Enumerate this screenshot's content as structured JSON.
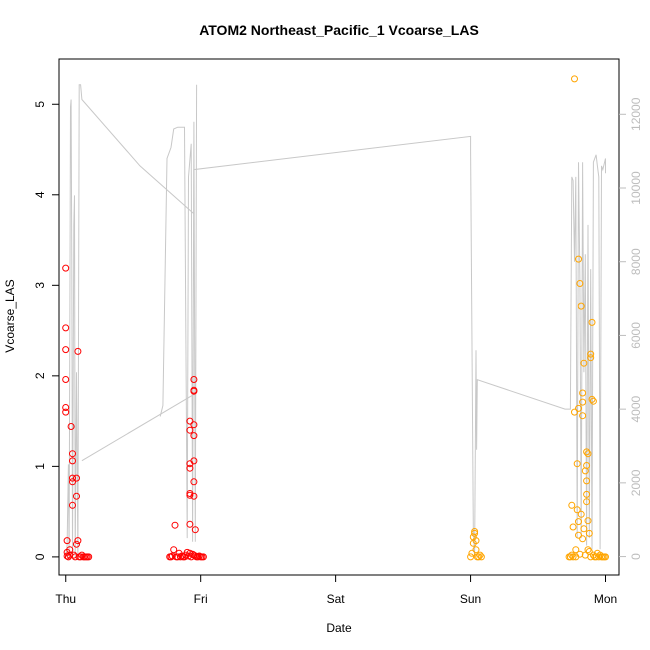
{
  "chart_data": {
    "type": "scatter",
    "title": "ATOM2 Northeast_Pacific_1 Vcoarse_LAS",
    "xlabel": "Date",
    "ylabel": "Vcoarse_LAS",
    "xlim": [
      -0.05,
      4.1
    ],
    "ylim": [
      -0.2,
      5.5
    ],
    "y2lim": [
      -500,
      13500
    ],
    "grid": false,
    "x_ticks": [
      {
        "value": 0,
        "label": "Thu"
      },
      {
        "value": 1,
        "label": "Fri"
      },
      {
        "value": 2,
        "label": "Sat"
      },
      {
        "value": 3,
        "label": "Sun"
      },
      {
        "value": 4,
        "label": "Mon"
      }
    ],
    "y_ticks": [
      {
        "value": 0,
        "label": "0"
      },
      {
        "value": 1,
        "label": "1"
      },
      {
        "value": 2,
        "label": "2"
      },
      {
        "value": 3,
        "label": "3"
      },
      {
        "value": 4,
        "label": "4"
      },
      {
        "value": 5,
        "label": "5"
      }
    ],
    "y2_ticks": [
      {
        "value": 0,
        "label": "0"
      },
      {
        "value": 2000,
        "label": "2000"
      },
      {
        "value": 4000,
        "label": "4000"
      },
      {
        "value": 6000,
        "label": "6000"
      },
      {
        "value": 8000,
        "label": "8000"
      },
      {
        "value": 10000,
        "label": "10000"
      },
      {
        "value": 12000,
        "label": "12000"
      }
    ],
    "colors": {
      "series_red": "#ff0000",
      "series_orange": "#ffa500",
      "altitude_line": "#c8c8c8",
      "axis": "#000000",
      "right_axis": "#bdbdbd"
    },
    "series": [
      {
        "color": "#ff0000",
        "points": [
          [
            0.0,
            3.19
          ],
          [
            0.0,
            2.53
          ],
          [
            0.0,
            2.29
          ],
          [
            0.0,
            1.96
          ],
          [
            0.0,
            1.65
          ],
          [
            0.0,
            1.6
          ],
          [
            0.01,
            0.18
          ],
          [
            0.01,
            0.05
          ],
          [
            0.01,
            0.01
          ],
          [
            0.02,
            0.0
          ],
          [
            0.03,
            0.02
          ],
          [
            0.03,
            0.08
          ],
          [
            0.04,
            1.44
          ],
          [
            0.05,
            1.14
          ],
          [
            0.05,
            1.06
          ],
          [
            0.05,
            0.87
          ],
          [
            0.05,
            0.83
          ],
          [
            0.05,
            0.57
          ],
          [
            0.06,
            0.02
          ],
          [
            0.07,
            0.0
          ],
          [
            0.08,
            0.87
          ],
          [
            0.08,
            0.67
          ],
          [
            0.08,
            0.14
          ],
          [
            0.09,
            2.27
          ],
          [
            0.09,
            0.18
          ],
          [
            0.1,
            0.0
          ],
          [
            0.11,
            0.0
          ],
          [
            0.12,
            0.02
          ],
          [
            0.13,
            0.0
          ],
          [
            0.14,
            0.0
          ],
          [
            0.15,
            0.0
          ],
          [
            0.16,
            0.0
          ],
          [
            0.17,
            0.0
          ],
          [
            0.77,
            0.0
          ],
          [
            0.78,
            0.0
          ],
          [
            0.79,
            0.01
          ],
          [
            0.8,
            0.08
          ],
          [
            0.81,
            0.35
          ],
          [
            0.82,
            0.0
          ],
          [
            0.83,
            0.0
          ],
          [
            0.84,
            0.04
          ],
          [
            0.85,
            0.0
          ],
          [
            0.86,
            0.01
          ],
          [
            0.87,
            0.0
          ],
          [
            0.88,
            0.0
          ],
          [
            0.89,
            0.02
          ],
          [
            0.9,
            0.05
          ],
          [
            0.91,
            0.01
          ],
          [
            0.92,
            1.5
          ],
          [
            0.92,
            1.4
          ],
          [
            0.92,
            1.03
          ],
          [
            0.92,
            0.98
          ],
          [
            0.92,
            0.7
          ],
          [
            0.92,
            0.68
          ],
          [
            0.92,
            0.36
          ],
          [
            0.92,
            0.04
          ],
          [
            0.93,
            0.0
          ],
          [
            0.94,
            0.03
          ],
          [
            0.95,
            1.96
          ],
          [
            0.95,
            1.84
          ],
          [
            0.95,
            1.83
          ],
          [
            0.95,
            1.46
          ],
          [
            0.95,
            1.34
          ],
          [
            0.95,
            1.06
          ],
          [
            0.95,
            0.83
          ],
          [
            0.95,
            0.67
          ],
          [
            0.95,
            0.02
          ],
          [
            0.96,
            0.3
          ],
          [
            0.96,
            0.01
          ],
          [
            0.97,
            0.0
          ],
          [
            0.98,
            0.0
          ],
          [
            0.99,
            0.01
          ],
          [
            1.0,
            0.0
          ],
          [
            1.01,
            0.0
          ],
          [
            1.02,
            0.0
          ]
        ]
      },
      {
        "color": "#ffa500",
        "points": [
          [
            3.0,
            0.0
          ],
          [
            3.01,
            0.04
          ],
          [
            3.02,
            0.15
          ],
          [
            3.02,
            0.22
          ],
          [
            3.03,
            0.26
          ],
          [
            3.03,
            0.28
          ],
          [
            3.04,
            0.18
          ],
          [
            3.04,
            0.08
          ],
          [
            3.05,
            0.0
          ],
          [
            3.06,
            0.0
          ],
          [
            3.07,
            0.02
          ],
          [
            3.08,
            0.0
          ],
          [
            3.73,
            0.0
          ],
          [
            3.74,
            0.0
          ],
          [
            3.75,
            0.57
          ],
          [
            3.75,
            0.02
          ],
          [
            3.76,
            0.33
          ],
          [
            3.76,
            0.0
          ],
          [
            3.77,
            5.28
          ],
          [
            3.77,
            1.6
          ],
          [
            3.78,
            0.08
          ],
          [
            3.78,
            0.0
          ],
          [
            3.79,
            1.03
          ],
          [
            3.79,
            0.52
          ],
          [
            3.8,
            3.29
          ],
          [
            3.8,
            1.64
          ],
          [
            3.8,
            0.39
          ],
          [
            3.8,
            0.24
          ],
          [
            3.81,
            3.02
          ],
          [
            3.81,
            0.03
          ],
          [
            3.82,
            2.77
          ],
          [
            3.82,
            0.47
          ],
          [
            3.83,
            1.81
          ],
          [
            3.83,
            1.71
          ],
          [
            3.83,
            1.56
          ],
          [
            3.83,
            0.2
          ],
          [
            3.84,
            2.14
          ],
          [
            3.84,
            0.31
          ],
          [
            3.85,
            0.95
          ],
          [
            3.85,
            0.02
          ],
          [
            3.86,
            1.16
          ],
          [
            3.86,
            1.01
          ],
          [
            3.86,
            0.84
          ],
          [
            3.86,
            0.69
          ],
          [
            3.86,
            0.61
          ],
          [
            3.87,
            1.14
          ],
          [
            3.87,
            0.4
          ],
          [
            3.87,
            0.08
          ],
          [
            3.88,
            0.26
          ],
          [
            3.88,
            0.06
          ],
          [
            3.89,
            2.24
          ],
          [
            3.89,
            2.2
          ],
          [
            3.89,
            0.0
          ],
          [
            3.9,
            2.59
          ],
          [
            3.9,
            1.74
          ],
          [
            3.91,
            1.72
          ],
          [
            3.91,
            0.02
          ],
          [
            3.92,
            0.0
          ],
          [
            3.93,
            0.0
          ],
          [
            3.94,
            0.04
          ],
          [
            3.95,
            0.0
          ],
          [
            3.96,
            0.02
          ],
          [
            3.97,
            0.0
          ],
          [
            3.98,
            0.0
          ],
          [
            3.99,
            0.0
          ],
          [
            4.0,
            0.0
          ]
        ]
      }
    ],
    "altitude_line": [
      [
        0.0,
        0
      ],
      [
        0.01,
        300
      ],
      [
        0.02,
        2500
      ],
      [
        0.025,
        0
      ],
      [
        0.035,
        12200
      ],
      [
        0.04,
        12400
      ],
      [
        0.045,
        8000
      ],
      [
        0.05,
        0
      ],
      [
        0.06,
        9000
      ],
      [
        0.065,
        9800
      ],
      [
        0.07,
        0
      ],
      [
        0.08,
        5000
      ],
      [
        0.09,
        0
      ],
      [
        0.1,
        12800
      ],
      [
        0.11,
        12800
      ],
      [
        0.12,
        12400
      ],
      [
        0.55,
        10600
      ],
      [
        0.95,
        9300
      ],
      [
        0.95,
        10500
      ],
      [
        3.0,
        11400
      ],
      [
        3.0,
        11000
      ],
      [
        3.02,
        800
      ],
      [
        3.03,
        0
      ],
      [
        3.04,
        5600
      ],
      [
        3.045,
        2900
      ],
      [
        3.05,
        4800
      ],
      [
        3.7,
        4000
      ],
      [
        3.74,
        4000
      ],
      [
        3.75,
        10300
      ],
      [
        3.76,
        10200
      ],
      [
        3.77,
        8000
      ],
      [
        3.78,
        10300
      ],
      [
        3.79,
        500
      ],
      [
        3.8,
        10700
      ],
      [
        3.81,
        7500
      ],
      [
        3.82,
        500
      ],
      [
        3.83,
        10700
      ],
      [
        3.84,
        5000
      ],
      [
        3.85,
        8200
      ],
      [
        3.86,
        300
      ],
      [
        3.87,
        9000
      ],
      [
        3.88,
        500
      ],
      [
        3.89,
        7800
      ],
      [
        3.9,
        200
      ],
      [
        3.91,
        10700
      ],
      [
        3.93,
        10900
      ],
      [
        3.94,
        10600
      ],
      [
        3.95,
        10300
      ],
      [
        3.96,
        200
      ],
      [
        3.97,
        10600
      ],
      [
        3.98,
        10500
      ],
      [
        4.0,
        10800
      ],
      [
        4.0,
        10400
      ]
    ],
    "altitude_segment_fri": [
      [
        0.7,
        3800
      ],
      [
        0.72,
        4100
      ],
      [
        0.75,
        10800
      ],
      [
        0.78,
        11100
      ],
      [
        0.8,
        11600
      ],
      [
        0.83,
        11650
      ],
      [
        0.88,
        11650
      ],
      [
        0.9,
        500
      ],
      [
        0.91,
        10300
      ],
      [
        0.93,
        11200
      ],
      [
        0.94,
        400
      ],
      [
        0.95,
        11800
      ],
      [
        0.96,
        400
      ],
      [
        0.97,
        12800
      ]
    ],
    "altitude_connector_thu_fri": [
      [
        0.12,
        2600
      ],
      [
        0.95,
        4400
      ]
    ]
  }
}
